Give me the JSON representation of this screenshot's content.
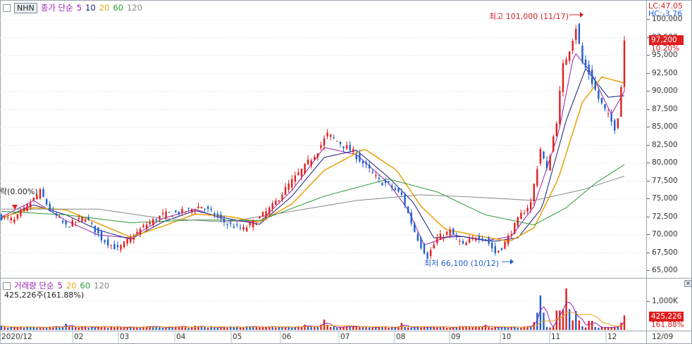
{
  "symbol": "NHN",
  "price_legend": {
    "label": "종가 단순",
    "periods": [
      "5",
      "10",
      "20",
      "60",
      "120"
    ]
  },
  "volume_legend": {
    "label": "거래량 단순",
    "periods": [
      "5",
      "20",
      "60",
      "120"
    ]
  },
  "corner": {
    "lc": "LC:47.05",
    "hc": "HC:-3.76"
  },
  "annotations": {
    "high": "최고 101,000 (11/17)",
    "low": "최저 66,100 (10/12)",
    "left_cut": "락(0.00%)",
    "volume_info": "425,226주(161.88%)"
  },
  "price_axis": {
    "ticks": [
      "100,000",
      "97,500",
      "95,000",
      "92,500",
      "90,000",
      "87,500",
      "85,000",
      "82,500",
      "80,000",
      "77,500",
      "75,000",
      "72,500",
      "70,000",
      "67,500",
      "65,000"
    ]
  },
  "volume_axis": {
    "ticks": [
      "1,000K"
    ]
  },
  "current": {
    "price": "97,200",
    "change": "10.20%",
    "volume": "425,226",
    "volume_change": "161.88%"
  },
  "x_axis": {
    "labels": [
      "2020/12",
      "02",
      "03",
      "04",
      "05",
      "06",
      "07",
      "08",
      "09",
      "10",
      "11",
      "12",
      "12/09"
    ]
  },
  "colors": {
    "up": "#e01e1e",
    "down": "#1f5fd0",
    "ma5": "#9b1fb0",
    "ma10": "#1a1a7a",
    "ma20": "#e8a516",
    "ma60": "#2a9a3a",
    "ma120": "#888888"
  },
  "chart_data": {
    "type": "candlestick",
    "title": "NHN",
    "y_unit": "KRW",
    "ylim": [
      64000,
      102000
    ],
    "y_ticks": [
      65000,
      67500,
      70000,
      72500,
      75000,
      77500,
      80000,
      82500,
      85000,
      87500,
      90000,
      92500,
      95000,
      97500,
      100000
    ],
    "x_range": [
      "2020/12",
      "2021/12/09"
    ],
    "price_path": [
      [
        0,
        72500
      ],
      [
        8,
        72000
      ],
      [
        18,
        74500
      ],
      [
        24,
        76000
      ],
      [
        30,
        73500
      ],
      [
        40,
        71200
      ],
      [
        52,
        72500
      ],
      [
        62,
        69500
      ],
      [
        72,
        68000
      ],
      [
        80,
        69500
      ],
      [
        90,
        71500
      ],
      [
        100,
        72800
      ],
      [
        112,
        73200
      ],
      [
        124,
        74000
      ],
      [
        134,
        72500
      ],
      [
        140,
        71500
      ],
      [
        150,
        70800
      ],
      [
        158,
        72000
      ],
      [
        168,
        74000
      ],
      [
        178,
        77000
      ],
      [
        188,
        79500
      ],
      [
        196,
        81800
      ],
      [
        202,
        84000
      ],
      [
        210,
        82800
      ],
      [
        218,
        81500
      ],
      [
        226,
        79500
      ],
      [
        234,
        77500
      ],
      [
        240,
        77000
      ],
      [
        248,
        75500
      ],
      [
        252,
        73000
      ],
      [
        256,
        70500
      ],
      [
        260,
        68500
      ],
      [
        264,
        67000
      ],
      [
        270,
        69500
      ],
      [
        278,
        70500
      ],
      [
        286,
        68500
      ],
      [
        294,
        69800
      ],
      [
        300,
        69500
      ],
      [
        306,
        67500
      ],
      [
        311,
        68500
      ],
      [
        316,
        70500
      ],
      [
        322,
        72800
      ],
      [
        328,
        74500
      ],
      [
        334,
        82000
      ],
      [
        338,
        79000
      ],
      [
        344,
        86000
      ],
      [
        348,
        93500
      ],
      [
        352,
        96000
      ],
      [
        356,
        99000
      ],
      [
        360,
        94000
      ],
      [
        364,
        92500
      ],
      [
        370,
        89000
      ],
      [
        376,
        86500
      ],
      [
        380,
        85000
      ],
      [
        383,
        87500
      ],
      [
        386,
        97200
      ]
    ],
    "ma_series": [
      {
        "name": "5",
        "pts": [
          [
            0,
            72500
          ],
          [
            20,
            74800
          ],
          [
            40,
            72000
          ],
          [
            60,
            70000
          ],
          [
            80,
            69600
          ],
          [
            100,
            72300
          ],
          [
            120,
            73600
          ],
          [
            140,
            72000
          ],
          [
            160,
            71800
          ],
          [
            180,
            76200
          ],
          [
            200,
            82200
          ],
          [
            220,
            81200
          ],
          [
            240,
            77200
          ],
          [
            252,
            73500
          ],
          [
            262,
            68600
          ],
          [
            280,
            70000
          ],
          [
            300,
            69200
          ],
          [
            316,
            69800
          ],
          [
            330,
            74000
          ],
          [
            345,
            84000
          ],
          [
            355,
            95500
          ],
          [
            365,
            92800
          ],
          [
            378,
            86800
          ],
          [
            386,
            90000
          ]
        ]
      },
      {
        "name": "10",
        "pts": [
          [
            0,
            72300
          ],
          [
            20,
            74200
          ],
          [
            40,
            72800
          ],
          [
            60,
            70700
          ],
          [
            80,
            69400
          ],
          [
            100,
            71800
          ],
          [
            120,
            73400
          ],
          [
            140,
            72300
          ],
          [
            160,
            71500
          ],
          [
            180,
            75400
          ],
          [
            200,
            80800
          ],
          [
            220,
            81800
          ],
          [
            240,
            78000
          ],
          [
            255,
            74600
          ],
          [
            268,
            69600
          ],
          [
            285,
            69800
          ],
          [
            305,
            69100
          ],
          [
            320,
            69600
          ],
          [
            335,
            73800
          ],
          [
            350,
            86000
          ],
          [
            362,
            93200
          ],
          [
            376,
            89200
          ],
          [
            386,
            89400
          ]
        ]
      },
      {
        "name": "20",
        "pts": [
          [
            0,
            72400
          ],
          [
            20,
            73800
          ],
          [
            40,
            73500
          ],
          [
            60,
            71600
          ],
          [
            80,
            69700
          ],
          [
            100,
            71200
          ],
          [
            120,
            72900
          ],
          [
            140,
            72600
          ],
          [
            160,
            71800
          ],
          [
            180,
            74300
          ],
          [
            200,
            79000
          ],
          [
            225,
            82000
          ],
          [
            245,
            79000
          ],
          [
            260,
            74000
          ],
          [
            275,
            70800
          ],
          [
            295,
            69900
          ],
          [
            315,
            69100
          ],
          [
            330,
            71000
          ],
          [
            345,
            77800
          ],
          [
            360,
            88500
          ],
          [
            372,
            92000
          ],
          [
            386,
            91200
          ]
        ]
      },
      {
        "name": "60",
        "pts": [
          [
            0,
            73300
          ],
          [
            40,
            72800
          ],
          [
            80,
            71700
          ],
          [
            120,
            72100
          ],
          [
            160,
            72000
          ],
          [
            200,
            75400
          ],
          [
            240,
            77800
          ],
          [
            270,
            76000
          ],
          [
            300,
            72800
          ],
          [
            330,
            71400
          ],
          [
            350,
            73800
          ],
          [
            368,
            77200
          ],
          [
            386,
            79800
          ]
        ]
      },
      {
        "name": "120",
        "pts": [
          [
            0,
            73600
          ],
          [
            60,
            73600
          ],
          [
            100,
            72300
          ],
          [
            140,
            71800
          ],
          [
            180,
            73300
          ],
          [
            220,
            74800
          ],
          [
            260,
            75600
          ],
          [
            300,
            75200
          ],
          [
            330,
            74800
          ],
          [
            360,
            76300
          ],
          [
            386,
            78200
          ]
        ]
      }
    ],
    "volume_series": [
      {
        "name": "거래량",
        "last": 425226,
        "last_change_pct": 161.88
      }
    ],
    "volume_spikes": [
      [
        0,
        0.12
      ],
      [
        40,
        0.18
      ],
      [
        80,
        0.1
      ],
      [
        120,
        0.12
      ],
      [
        188,
        0.15
      ],
      [
        200,
        0.3
      ],
      [
        248,
        0.2
      ],
      [
        300,
        0.15
      ],
      [
        332,
        0.45
      ],
      [
        334,
        1.0
      ],
      [
        345,
        0.75
      ],
      [
        350,
        1.2
      ],
      [
        356,
        0.55
      ],
      [
        365,
        0.35
      ],
      [
        386,
        0.42
      ]
    ]
  }
}
